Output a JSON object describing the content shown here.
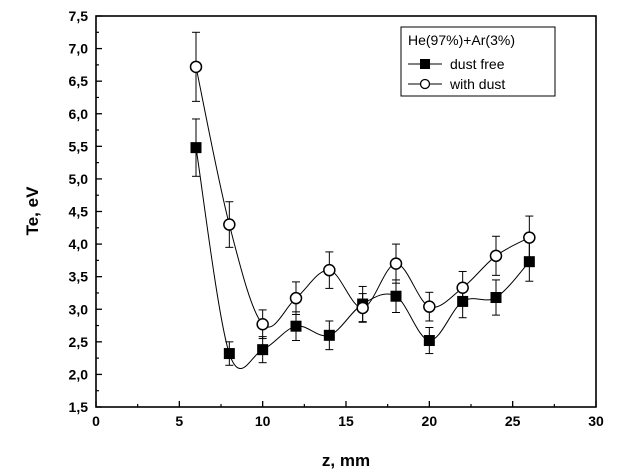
{
  "chart_data": {
    "type": "line",
    "xlabel": "z, mm",
    "ylabel": "Te, eV",
    "xlim": [
      0,
      30
    ],
    "ylim": [
      1.5,
      7.5
    ],
    "xticks": [
      0,
      5,
      10,
      15,
      20,
      25,
      30
    ],
    "xtick_labels": [
      "0",
      "5",
      "10",
      "15",
      "20",
      "25",
      "30"
    ],
    "yticks": [
      1.5,
      2.0,
      2.5,
      3.0,
      3.5,
      4.0,
      4.5,
      5.0,
      5.5,
      6.0,
      6.5,
      7.0,
      7.5
    ],
    "ytick_labels": [
      "1,5",
      "2,0",
      "2,5",
      "3,0",
      "3,5",
      "4,0",
      "4,5",
      "5,0",
      "5,5",
      "6,0",
      "6,5",
      "7,0",
      "7,5"
    ],
    "grid": false,
    "legend": {
      "title": "He(97%)+Ar(3%)",
      "position": "top-right"
    },
    "series": [
      {
        "name": "dust free",
        "marker": "filled-square",
        "x": [
          6,
          8,
          10,
          12,
          14,
          16,
          18,
          20,
          22,
          24,
          26
        ],
        "y": [
          5.48,
          2.32,
          2.38,
          2.74,
          2.6,
          3.08,
          3.2,
          2.52,
          3.12,
          3.18,
          3.73
        ],
        "err": [
          0.44,
          0.18,
          0.2,
          0.22,
          0.22,
          0.27,
          0.25,
          0.2,
          0.25,
          0.27,
          0.3
        ]
      },
      {
        "name": "with dust",
        "marker": "open-circle",
        "x": [
          6,
          8,
          10,
          12,
          14,
          16,
          18,
          20,
          22,
          24,
          26
        ],
        "y": [
          6.72,
          4.3,
          2.77,
          3.17,
          3.6,
          3.02,
          3.7,
          3.04,
          3.33,
          3.82,
          4.1
        ],
        "err": [
          0.53,
          0.35,
          0.22,
          0.25,
          0.28,
          0.22,
          0.3,
          0.22,
          0.25,
          0.3,
          0.33
        ]
      }
    ]
  }
}
